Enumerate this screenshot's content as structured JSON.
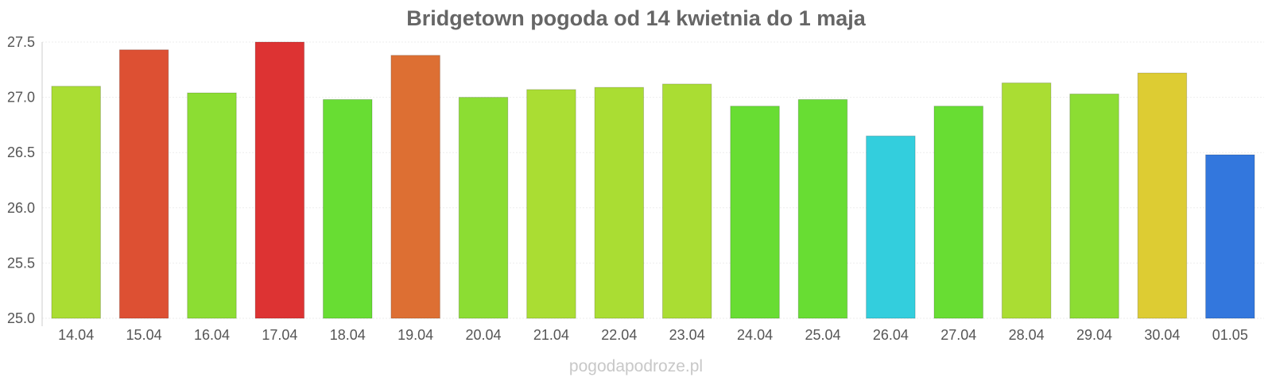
{
  "chart_data": {
    "type": "bar",
    "title": "Bridgetown pogoda od 14 kwietnia do 1 maja",
    "xlabel": "",
    "ylabel": "",
    "ylim": [
      25.0,
      27.5
    ],
    "yticks": [
      "25.0",
      "25.5",
      "26.0",
      "26.5",
      "27.0",
      "27.5"
    ],
    "grid": true,
    "categories": [
      "14.04",
      "15.04",
      "16.04",
      "17.04",
      "18.04",
      "19.04",
      "20.04",
      "21.04",
      "22.04",
      "23.04",
      "24.04",
      "25.04",
      "26.04",
      "27.04",
      "28.04",
      "29.04",
      "30.04",
      "01.05"
    ],
    "values": [
      27.1,
      27.43,
      27.04,
      27.5,
      26.98,
      27.38,
      27.0,
      27.07,
      27.09,
      27.12,
      26.92,
      26.98,
      26.65,
      26.92,
      27.13,
      27.03,
      27.22,
      26.48
    ],
    "colors": [
      "#aadd33",
      "#dd5033",
      "#8cdd33",
      "#dd3333",
      "#68dd33",
      "#dd6f33",
      "#8cdd33",
      "#aadd33",
      "#aadd33",
      "#aadd33",
      "#68dd33",
      "#68dd33",
      "#33cedd",
      "#68dd33",
      "#aadd33",
      "#8cdd33",
      "#ddcc33",
      "#3377dd"
    ]
  },
  "watermark": "pogodapodroze.pl"
}
